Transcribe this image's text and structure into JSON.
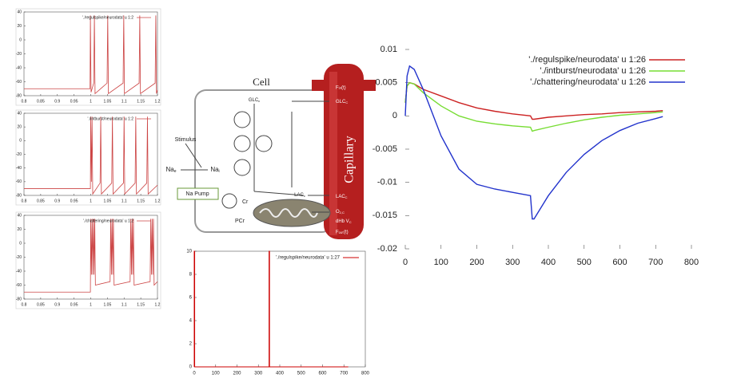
{
  "chart_data": [
    {
      "type": "line",
      "x": [
        0.8,
        0.998,
        0.999,
        1.001,
        1.009,
        1.011,
        1.013,
        1.049,
        1.051,
        1.053,
        1.097,
        1.099,
        1.101,
        1.145,
        1.147,
        1.149,
        1.193,
        1.195,
        1.197,
        1.2
      ],
      "series": [
        {
          "name": "'./regulspike/neurodata' u 1:2",
          "color": "#cc4444",
          "values": [
            -70,
            -70,
            35,
            -75,
            -62,
            35,
            -77,
            -62,
            35,
            -77,
            -62,
            35,
            -77,
            -62,
            35,
            -77,
            -62,
            35,
            -77,
            -72
          ]
        }
      ],
      "xlim": [
        0.8,
        1.2
      ],
      "xticks": [
        0.8,
        0.85,
        0.9,
        0.95,
        1,
        1.05,
        1.1,
        1.15,
        1.2
      ],
      "ylim": [
        -80,
        40
      ],
      "yticks": [
        -80,
        -60,
        -40,
        -20,
        0,
        20,
        40
      ],
      "legend": "upper right"
    },
    {
      "type": "line",
      "x": [
        0.8,
        0.999,
        1.0,
        1.002,
        1.004,
        1.006,
        1.028,
        1.03,
        1.032,
        1.063,
        1.065,
        1.067,
        1.098,
        1.1,
        1.102,
        1.133,
        1.135,
        1.137,
        1.168,
        1.17,
        1.172,
        1.2
      ],
      "series": [
        {
          "name": "'./intburst/neurodata' u 1:2",
          "color": "#cc4444",
          "values": [
            -70,
            -70,
            35,
            -60,
            35,
            -78,
            -62,
            35,
            -78,
            -62,
            35,
            -78,
            -62,
            35,
            -78,
            -62,
            35,
            -78,
            -62,
            35,
            -78,
            -65
          ]
        }
      ],
      "xlim": [
        0.8,
        1.2
      ],
      "xticks": [
        0.8,
        0.85,
        0.9,
        0.95,
        1,
        1.05,
        1.1,
        1.15,
        1.2
      ],
      "ylim": [
        -80,
        40
      ],
      "yticks": [
        -80,
        -60,
        -40,
        -20,
        0,
        20,
        40
      ],
      "legend": "upper right"
    },
    {
      "type": "line",
      "x": [
        0.8,
        0.999,
        1.0,
        1.002,
        1.004,
        1.006,
        1.008,
        1.01,
        1.012,
        1.014,
        1.058,
        1.06,
        1.062,
        1.064,
        1.066,
        1.068,
        1.07,
        1.118,
        1.12,
        1.122,
        1.124,
        1.126,
        1.128,
        1.13,
        1.178,
        1.18,
        1.182,
        1.184,
        1.186,
        1.188,
        1.19,
        1.2
      ],
      "series": [
        {
          "name": "'./chattering/neurodata' u 1:2",
          "color": "#cc4444",
          "values": [
            -70,
            -70,
            35,
            -45,
            35,
            -45,
            35,
            -45,
            35,
            -60,
            -55,
            35,
            -45,
            35,
            -45,
            35,
            -60,
            -55,
            35,
            -45,
            35,
            -45,
            35,
            -60,
            -55,
            35,
            -45,
            35,
            -45,
            35,
            -60,
            -55
          ]
        }
      ],
      "xlim": [
        0.8,
        1.2
      ],
      "xticks": [
        0.8,
        0.85,
        0.9,
        0.95,
        1,
        1.05,
        1.1,
        1.15,
        1.2
      ],
      "ylim": [
        -80,
        40
      ],
      "yticks": [
        -80,
        -60,
        -40,
        -20,
        0,
        20,
        40
      ],
      "legend": "upper right"
    },
    {
      "type": "line",
      "x": [
        0,
        0,
        2,
        2,
        350,
        350,
        352,
        352,
        720
      ],
      "series": [
        {
          "name": "'./regulspike/neurodata' u 1:27",
          "color": "#cc0000",
          "values": [
            0,
            10,
            10,
            0,
            0,
            10,
            10,
            0,
            0
          ]
        }
      ],
      "xlim": [
        0,
        800
      ],
      "xticks": [
        0,
        100,
        200,
        300,
        400,
        500,
        600,
        700,
        800
      ],
      "ylim": [
        0,
        10
      ],
      "yticks": [
        0,
        2,
        4,
        6,
        8,
        10
      ],
      "legend": "upper right"
    },
    {
      "type": "line",
      "x": [
        0,
        5,
        12,
        25,
        50,
        100,
        150,
        200,
        250,
        300,
        350,
        355,
        360,
        400,
        450,
        500,
        550,
        600,
        650,
        700,
        720
      ],
      "series": [
        {
          "name": "'./regulspike/neurodata' u 1:26",
          "color": "#cc2222",
          "values": [
            0.002,
            0.0045,
            0.005,
            0.0048,
            0.004,
            0.003,
            0.002,
            0.0012,
            0.0007,
            0.0003,
            0.0,
            -0.0005,
            -0.0005,
            -0.0002,
            0.0,
            0.0002,
            0.0003,
            0.0005,
            0.0006,
            0.0007,
            0.0008
          ]
        },
        {
          "name": "'./intburst/neurodata' u 1:26",
          "color": "#77dd33",
          "values": [
            0.002,
            0.0045,
            0.005,
            0.0048,
            0.0035,
            0.0015,
            0.0,
            -0.0008,
            -0.0012,
            -0.0015,
            -0.0017,
            -0.0023,
            -0.0022,
            -0.0017,
            -0.0011,
            -0.0006,
            -0.0002,
            0.0001,
            0.0003,
            0.0005,
            0.0006
          ]
        },
        {
          "name": "'./chattering/neurodata' u 1:26",
          "color": "#2233cc",
          "values": [
            0.0,
            0.006,
            0.0075,
            0.007,
            0.004,
            -0.003,
            -0.008,
            -0.0103,
            -0.011,
            -0.0115,
            -0.012,
            -0.0155,
            -0.0155,
            -0.012,
            -0.0085,
            -0.0058,
            -0.0037,
            -0.0022,
            -0.0011,
            -0.0004,
            -0.0001
          ]
        }
      ],
      "xlim": [
        0,
        800
      ],
      "xticks": [
        0,
        100,
        200,
        300,
        400,
        500,
        600,
        700,
        800
      ],
      "ylim": [
        -0.02,
        0.01
      ],
      "yticks": [
        -0.02,
        -0.015,
        -0.01,
        -0.005,
        0,
        0.005,
        0.01
      ],
      "legend": "upper right"
    }
  ],
  "diagram": {
    "cell": "Cell",
    "capillary": "Capillary",
    "stimulus": "Stimulus",
    "na_pump": "Na Pump",
    "na_e": {
      "main": "Na",
      "sub": "e"
    },
    "na_i": {
      "main": "Na",
      "sub": "i"
    },
    "cr": "Cr",
    "pcr": "PCr",
    "glc_c": {
      "main": "GLC",
      "sub": "c"
    },
    "glc_cap": {
      "main": "GLC",
      "sub": "C"
    },
    "lac_c": {
      "main": "LAC",
      "sub": "c"
    },
    "lac_cap": {
      "main": "LAC",
      "sub": "C"
    },
    "f_in": "Fᵢₙ(t)",
    "o2": {
      "main": "O",
      "sub": "2,C"
    },
    "dhb": {
      "main": "dHb  V",
      "sub": "C"
    },
    "f_out": "Fₒᵤₜ(t)"
  }
}
